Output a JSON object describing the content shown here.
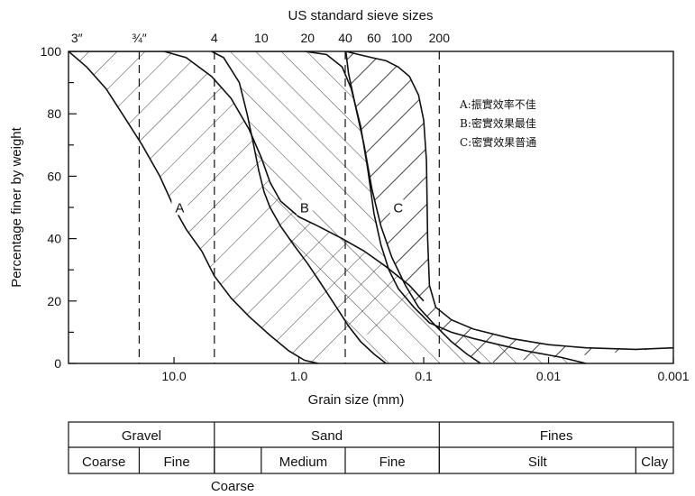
{
  "chart_data": {
    "type": "area",
    "top_axis_title": "US standard sieve sizes",
    "top_ticks": [
      {
        "label": "3″",
        "size_mm": 60
      },
      {
        "label": "¾″",
        "size_mm": 19
      },
      {
        "label": "4",
        "size_mm": 4.75
      },
      {
        "label": "10",
        "size_mm": 2.0
      },
      {
        "label": "20",
        "size_mm": 0.85
      },
      {
        "label": "40",
        "size_mm": 0.425
      },
      {
        "label": "60",
        "size_mm": 0.25
      },
      {
        "label": "100",
        "size_mm": 0.15
      },
      {
        "label": "200",
        "size_mm": 0.075
      }
    ],
    "dashed_lines_mm": [
      19,
      4.75,
      0.425,
      0.075
    ],
    "xlabel": "Grain size (mm)",
    "ylabel": "Percentage finer by weight",
    "x_scale": "log",
    "x_reversed": true,
    "xlim": [
      70,
      0.001
    ],
    "ylim": [
      0,
      100
    ],
    "x_ticks": [
      {
        "value": 10,
        "label": "10.0"
      },
      {
        "value": 1,
        "label": "1.0"
      },
      {
        "value": 0.1,
        "label": "0.1"
      },
      {
        "value": 0.01,
        "label": "0.01"
      },
      {
        "value": 0.001,
        "label": "0.001"
      }
    ],
    "y_ticks": [
      {
        "value": 0,
        "label": "0"
      },
      {
        "value": 20,
        "label": "20"
      },
      {
        "value": 40,
        "label": "40"
      },
      {
        "value": 60,
        "label": "60"
      },
      {
        "value": 80,
        "label": "80"
      },
      {
        "value": 100,
        "label": "100"
      }
    ],
    "y_minor_ticks": [
      10,
      30,
      50,
      70,
      90
    ],
    "bands": [
      {
        "name": "A",
        "upper": [
          [
            70,
            100
          ],
          [
            40,
            100
          ],
          [
            25,
            100
          ],
          [
            12,
            100
          ],
          [
            8,
            98
          ],
          [
            5,
            92
          ],
          [
            3.5,
            85
          ],
          [
            2.5,
            75
          ],
          [
            2.0,
            66
          ],
          [
            1.7,
            58
          ],
          [
            1.4,
            52
          ],
          [
            1.0,
            47
          ],
          [
            0.7,
            44
          ],
          [
            0.45,
            40
          ],
          [
            0.3,
            36
          ],
          [
            0.2,
            31
          ],
          [
            0.13,
            25
          ],
          [
            0.1,
            20
          ]
        ],
        "lower": [
          [
            70,
            100
          ],
          [
            50,
            95
          ],
          [
            35,
            88
          ],
          [
            25,
            79
          ],
          [
            18,
            70
          ],
          [
            13,
            60
          ],
          [
            10,
            50
          ],
          [
            8,
            43
          ],
          [
            6,
            36
          ],
          [
            4.75,
            28
          ],
          [
            3.5,
            21
          ],
          [
            2.5,
            15
          ],
          [
            1.7,
            9
          ],
          [
            1.2,
            4
          ],
          [
            0.9,
            1
          ],
          [
            0.7,
            0
          ]
        ]
      },
      {
        "name": "B",
        "upper": [
          [
            5,
            100
          ],
          [
            2.0,
            100
          ],
          [
            0.9,
            100
          ],
          [
            0.6,
            99
          ],
          [
            0.45,
            95
          ],
          [
            0.38,
            88
          ],
          [
            0.32,
            76
          ],
          [
            0.28,
            62
          ],
          [
            0.25,
            48
          ],
          [
            0.22,
            38
          ],
          [
            0.19,
            30
          ],
          [
            0.16,
            24
          ],
          [
            0.12,
            18
          ],
          [
            0.09,
            13
          ],
          [
            0.06,
            10
          ],
          [
            0.04,
            8
          ],
          [
            0.025,
            6
          ],
          [
            0.015,
            4
          ],
          [
            0.008,
            2
          ],
          [
            0.005,
            0
          ]
        ],
        "lower": [
          [
            5,
            100
          ],
          [
            4,
            98
          ],
          [
            3,
            90
          ],
          [
            2.6,
            80
          ],
          [
            2.3,
            70
          ],
          [
            2.1,
            62
          ],
          [
            1.9,
            55
          ],
          [
            1.7,
            50
          ],
          [
            1.4,
            44
          ],
          [
            1.1,
            38
          ],
          [
            0.85,
            32
          ],
          [
            0.65,
            25
          ],
          [
            0.5,
            18
          ],
          [
            0.4,
            12
          ],
          [
            0.32,
            7
          ],
          [
            0.25,
            3
          ],
          [
            0.2,
            0
          ]
        ]
      },
      {
        "name": "C",
        "upper": [
          [
            0.42,
            100
          ],
          [
            0.33,
            99
          ],
          [
            0.26,
            98
          ],
          [
            0.2,
            97
          ],
          [
            0.16,
            95
          ],
          [
            0.13,
            92
          ],
          [
            0.11,
            86
          ],
          [
            0.1,
            78
          ],
          [
            0.095,
            65
          ],
          [
            0.093,
            40
          ],
          [
            0.09,
            25
          ],
          [
            0.08,
            18
          ],
          [
            0.06,
            14
          ],
          [
            0.04,
            11
          ],
          [
            0.02,
            8
          ],
          [
            0.01,
            6
          ],
          [
            0.005,
            5
          ],
          [
            0.002,
            4.5
          ],
          [
            0.001,
            5
          ]
        ],
        "lower": [
          [
            0.42,
            100
          ],
          [
            0.4,
            93
          ],
          [
            0.35,
            82
          ],
          [
            0.3,
            70
          ],
          [
            0.26,
            56
          ],
          [
            0.22,
            44
          ],
          [
            0.18,
            34
          ],
          [
            0.14,
            25
          ],
          [
            0.11,
            18
          ],
          [
            0.08,
            12
          ],
          [
            0.06,
            7
          ],
          [
            0.045,
            3
          ],
          [
            0.035,
            0
          ]
        ]
      }
    ],
    "band_labels": [
      {
        "text": "A",
        "x_mm": 9,
        "y": 49
      },
      {
        "text": "B",
        "x_mm": 0.9,
        "y": 49
      },
      {
        "text": "C",
        "x_mm": 0.16,
        "y": 49
      }
    ],
    "legend": {
      "placement": "top-right",
      "entries": [
        "A:振實效率不佳",
        "B:密實效果最佳",
        "C:密實效果普通"
      ]
    }
  },
  "classification": {
    "row1": [
      {
        "label": "Gravel",
        "from_mm": 70,
        "to_mm": 4.75
      },
      {
        "label": "Sand",
        "from_mm": 4.75,
        "to_mm": 0.075
      },
      {
        "label": "Fines",
        "from_mm": 0.075,
        "to_mm": 0.001
      }
    ],
    "row2": [
      {
        "label": "Coarse",
        "from_mm": 70,
        "to_mm": 19
      },
      {
        "label": "Fine",
        "from_mm": 19,
        "to_mm": 4.75
      },
      {
        "label": "",
        "from_mm": 4.75,
        "to_mm": 2.0
      },
      {
        "label": "Medium",
        "from_mm": 2.0,
        "to_mm": 0.425
      },
      {
        "label": "Fine",
        "from_mm": 0.425,
        "to_mm": 0.075
      },
      {
        "label": "Silt",
        "from_mm": 0.075,
        "to_mm": 0.002
      },
      {
        "label": "Clay",
        "from_mm": 0.002,
        "to_mm": 0.001
      }
    ],
    "below_label": "Coarse"
  }
}
